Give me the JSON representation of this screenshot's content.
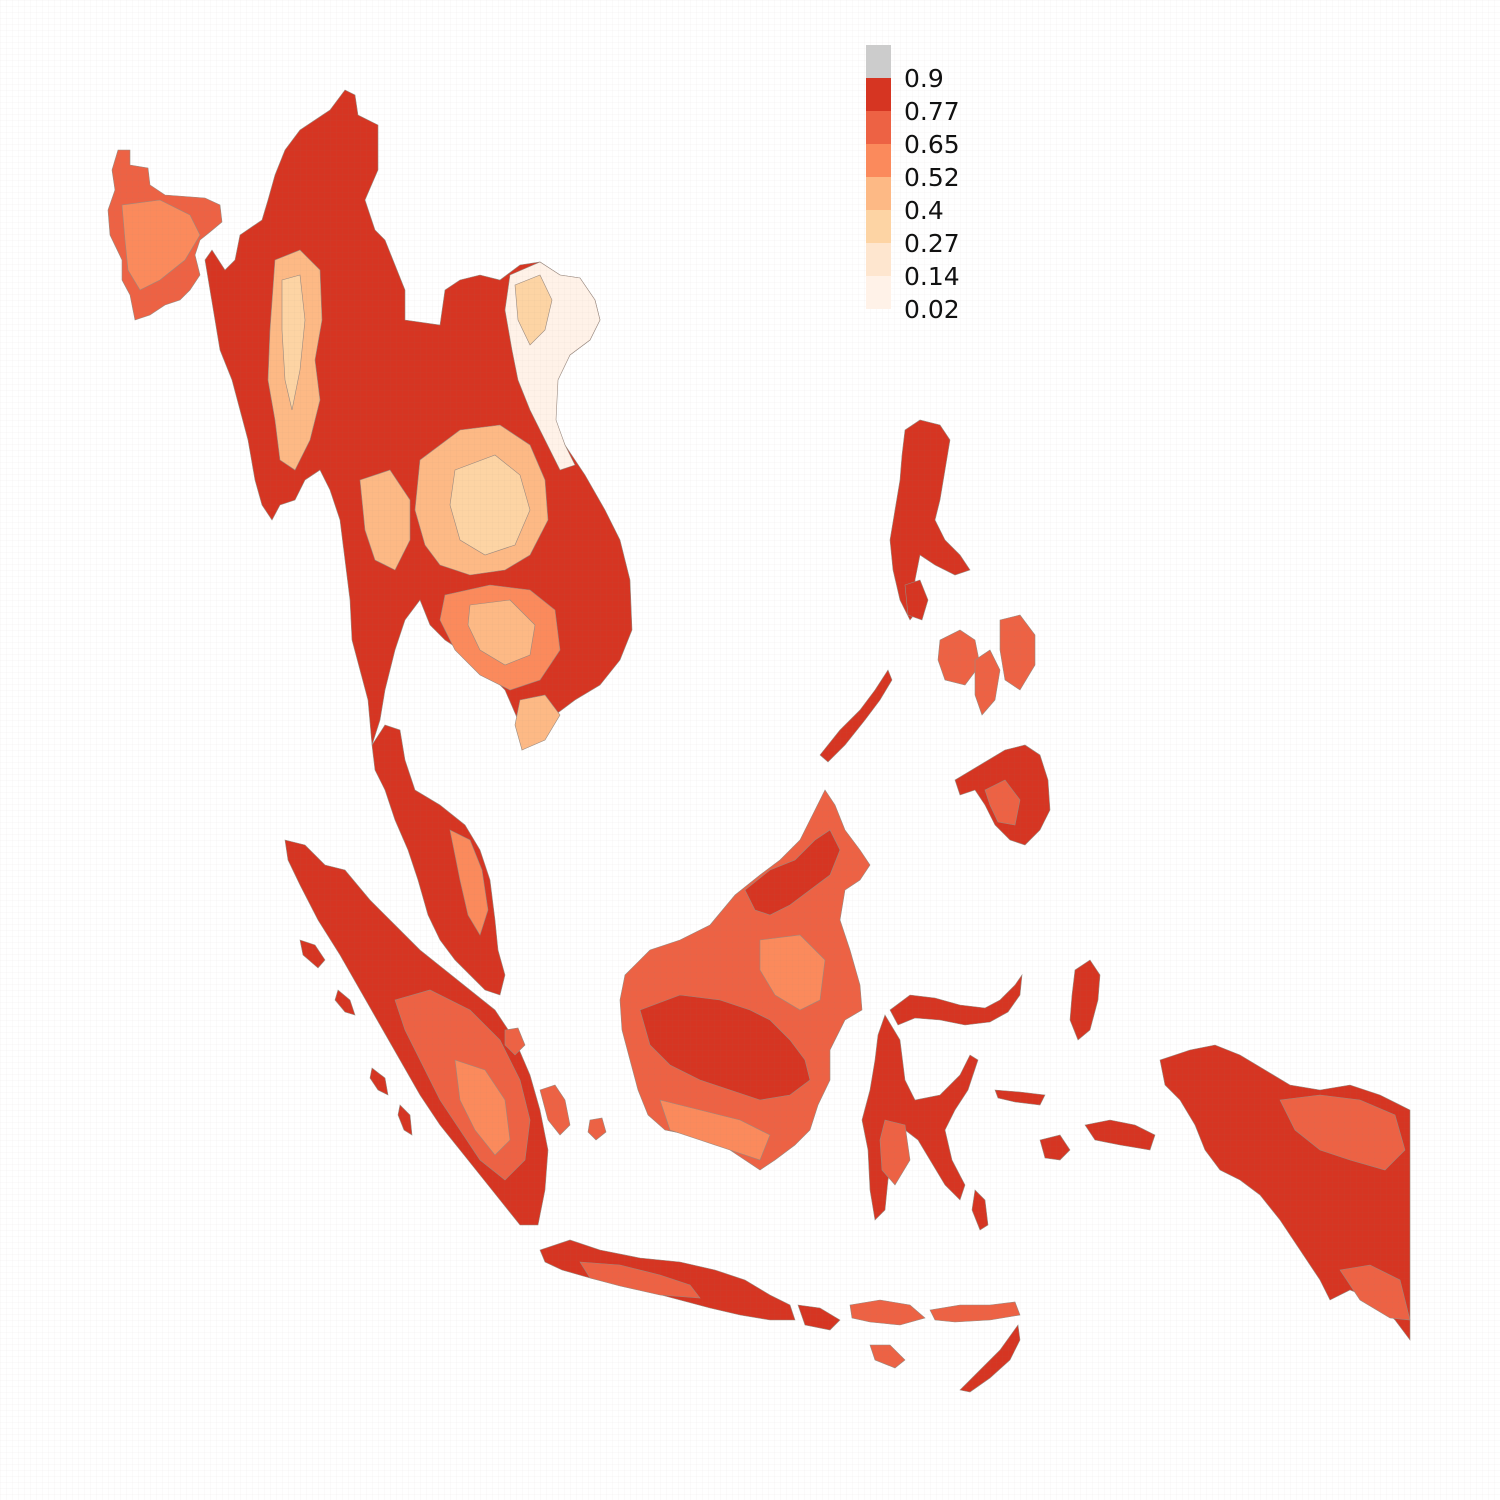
{
  "legend": {
    "bins": [
      {
        "label": "",
        "color": "#cccccc"
      },
      {
        "label": "0.9",
        "color": "#d63522"
      },
      {
        "label": "0.77",
        "color": "#ed6244"
      },
      {
        "label": "0.65",
        "color": "#fb8a5c"
      },
      {
        "label": "0.52",
        "color": "#fdb985"
      },
      {
        "label": "0.4",
        "color": "#fdd4a4"
      },
      {
        "label": "0.27",
        "color": "#fee6cf"
      },
      {
        "label": "0.14",
        "color": "#fff2e8"
      },
      {
        "label": "0.02",
        "color": ""
      }
    ]
  },
  "region_colors": {
    "dominant": "#d63522",
    "high": "#ed6244",
    "mid": "#fb8a5c",
    "low": "#fdb985",
    "lower": "#fdd4a4",
    "lowest": "#fff2e8",
    "cell_border": "#9a8a80"
  }
}
